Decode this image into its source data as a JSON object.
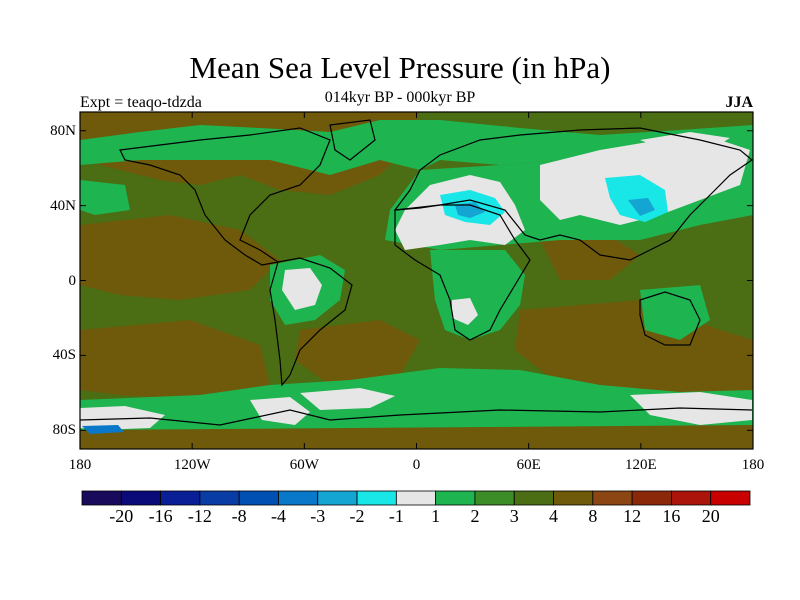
{
  "title": "Mean Sea Level Pressure (in hPa)",
  "subtitle": "014kyr BP - 000kyr BP",
  "left_label": "Expt = teaqo-tdzda",
  "right_label": "JJA",
  "map": {
    "projection": "cylindrical-equidistant",
    "lon_range": [
      -180,
      180
    ],
    "lat_range": [
      -90,
      90
    ],
    "y_ticks": [
      {
        "value": 80,
        "label": "80N"
      },
      {
        "value": 40,
        "label": "40N"
      },
      {
        "value": 0,
        "label": "0"
      },
      {
        "value": -40,
        "label": "40S"
      },
      {
        "value": -80,
        "label": "80S"
      }
    ],
    "x_ticks": [
      {
        "value": -180,
        "label": "180"
      },
      {
        "value": -120,
        "label": "120W"
      },
      {
        "value": -60,
        "label": "60W"
      },
      {
        "value": 0,
        "label": "0"
      },
      {
        "value": 60,
        "label": "60E"
      },
      {
        "value": 120,
        "label": "120E"
      },
      {
        "value": 180,
        "label": "180"
      }
    ]
  },
  "colorbar": {
    "colors": [
      "#1a0a5c",
      "#0a0a78",
      "#0a1e96",
      "#0a3ca5",
      "#0050b4",
      "#0a78c8",
      "#14a5d2",
      "#19e6e6",
      "#e6e6e6",
      "#1eb450",
      "#3c8c28",
      "#4b6e14",
      "#6e5a0a",
      "#8c4614",
      "#8c280a",
      "#aa140a",
      "#c80000"
    ],
    "labels": [
      "-20",
      "-16",
      "-12",
      "-8",
      "-4",
      "-3",
      "-2",
      "-1",
      "1",
      "2",
      "3",
      "4",
      "8",
      "12",
      "16",
      "20"
    ]
  },
  "fill_colors": {
    "background": "#4b6e14",
    "green": "#1eb450",
    "midgreen": "#3c8c28",
    "brown": "#6e5a0a",
    "white": "#e6e6e6",
    "cyan": "#19e6e6",
    "lightblue": "#14a5d2",
    "blue": "#0a78c8",
    "coast": "#000000"
  }
}
